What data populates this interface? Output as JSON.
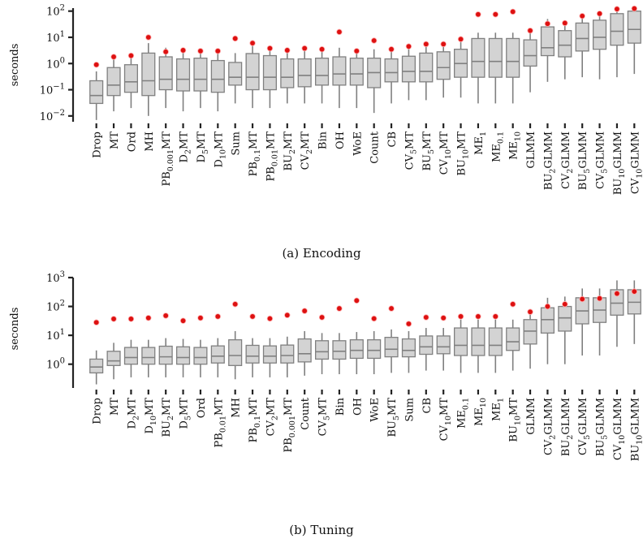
{
  "chart_data": [
    {
      "type": "box",
      "caption": "(a) Encoding",
      "ylabel": "seconds",
      "yscale": "log",
      "ylim": [
        0.006,
        130
      ],
      "yticks": [
        0.01,
        0.1,
        1,
        10,
        100
      ],
      "ytick_labels": [
        {
          "base": "10",
          "exp": "−2"
        },
        {
          "base": "10",
          "exp": "−1"
        },
        {
          "base": "10",
          "exp": "0"
        },
        {
          "base": "10",
          "exp": "1"
        },
        {
          "base": "10",
          "exp": "2"
        }
      ],
      "categories": [
        {
          "base": "Drop",
          "sub": ""
        },
        {
          "base": "MT",
          "sub": ""
        },
        {
          "base": "Ord",
          "sub": ""
        },
        {
          "base": "MH",
          "sub": ""
        },
        {
          "base": "PB",
          "sub": "0.001",
          "suffix": "MT"
        },
        {
          "base": "D",
          "sub": "2",
          "suffix": "MT"
        },
        {
          "base": "D",
          "sub": "5",
          "suffix": "MT"
        },
        {
          "base": "D",
          "sub": "10",
          "suffix": "MT"
        },
        {
          "base": "Sum",
          "sub": ""
        },
        {
          "base": "PB",
          "sub": "0.1",
          "suffix": "MT"
        },
        {
          "base": "PB",
          "sub": "0.01",
          "suffix": "MT"
        },
        {
          "base": "BU",
          "sub": "2",
          "suffix": "MT"
        },
        {
          "base": "CV",
          "sub": "2",
          "suffix": "MT"
        },
        {
          "base": "Bin",
          "sub": ""
        },
        {
          "base": "OH",
          "sub": ""
        },
        {
          "base": "WoE",
          "sub": ""
        },
        {
          "base": "Count",
          "sub": ""
        },
        {
          "base": "CB",
          "sub": ""
        },
        {
          "base": "CV",
          "sub": "5",
          "suffix": "MT"
        },
        {
          "base": "BU",
          "sub": "5",
          "suffix": "MT"
        },
        {
          "base": "CV",
          "sub": "10",
          "suffix": "MT"
        },
        {
          "base": "BU",
          "sub": "10",
          "suffix": "MT"
        },
        {
          "base": "ME",
          "sub": "1",
          "suffix": ""
        },
        {
          "base": "ME",
          "sub": "0.1",
          "suffix": ""
        },
        {
          "base": "ME",
          "sub": "10",
          "suffix": ""
        },
        {
          "base": "GLMM",
          "sub": ""
        },
        {
          "base": "BU",
          "sub": "2",
          "suffix": "GLMM"
        },
        {
          "base": "CV",
          "sub": "2",
          "suffix": "GLMM"
        },
        {
          "base": "BU",
          "sub": "5",
          "suffix": "GLMM"
        },
        {
          "base": "CV",
          "sub": "5",
          "suffix": "GLMM"
        },
        {
          "base": "BU",
          "sub": "10",
          "suffix": "GLMM"
        },
        {
          "base": "CV",
          "sub": "10",
          "suffix": "GLMM"
        }
      ],
      "boxes": [
        {
          "whislo": 0.007,
          "q1": 0.03,
          "med": 0.06,
          "q3": 0.22,
          "whishi": 0.5,
          "mean": 0.9
        },
        {
          "whislo": 0.015,
          "q1": 0.06,
          "med": 0.15,
          "q3": 0.7,
          "whishi": 1.5,
          "mean": 1.8
        },
        {
          "whislo": 0.02,
          "q1": 0.08,
          "med": 0.2,
          "q3": 0.9,
          "whishi": 1.8,
          "mean": 2.0
        },
        {
          "whislo": 0.01,
          "q1": 0.06,
          "med": 0.22,
          "q3": 2.5,
          "whishi": 6,
          "mean": 10
        },
        {
          "whislo": 0.02,
          "q1": 0.1,
          "med": 0.25,
          "q3": 1.8,
          "whishi": 4,
          "mean": 2.8
        },
        {
          "whislo": 0.015,
          "q1": 0.09,
          "med": 0.25,
          "q3": 1.5,
          "whishi": 3,
          "mean": 3.2
        },
        {
          "whislo": 0.02,
          "q1": 0.09,
          "med": 0.25,
          "q3": 1.6,
          "whishi": 3.2,
          "mean": 3.0
        },
        {
          "whislo": 0.015,
          "q1": 0.08,
          "med": 0.25,
          "q3": 1.3,
          "whishi": 3,
          "mean": 3.0
        },
        {
          "whislo": 0.03,
          "q1": 0.15,
          "med": 0.3,
          "q3": 1.1,
          "whishi": 2.5,
          "mean": 9
        },
        {
          "whislo": 0.02,
          "q1": 0.1,
          "med": 0.3,
          "q3": 2.4,
          "whishi": 5,
          "mean": 6
        },
        {
          "whislo": 0.02,
          "q1": 0.1,
          "med": 0.3,
          "q3": 2.0,
          "whishi": 4.5,
          "mean": 3.8
        },
        {
          "whislo": 0.03,
          "q1": 0.12,
          "med": 0.3,
          "q3": 1.5,
          "whishi": 3.5,
          "mean": 3.2
        },
        {
          "whislo": 0.03,
          "q1": 0.13,
          "med": 0.35,
          "q3": 1.5,
          "whishi": 3.5,
          "mean": 3.8
        },
        {
          "whislo": 0.03,
          "q1": 0.15,
          "med": 0.35,
          "q3": 1.6,
          "whishi": 3.5,
          "mean": 3.5
        },
        {
          "whislo": 0.02,
          "q1": 0.15,
          "med": 0.4,
          "q3": 1.8,
          "whishi": 4,
          "mean": 16
        },
        {
          "whislo": 0.02,
          "q1": 0.15,
          "med": 0.4,
          "q3": 1.6,
          "whishi": 3.5,
          "mean": 3.0
        },
        {
          "whislo": 0.013,
          "q1": 0.12,
          "med": 0.45,
          "q3": 1.6,
          "whishi": 3.5,
          "mean": 7.5
        },
        {
          "whislo": 0.03,
          "q1": 0.2,
          "med": 0.45,
          "q3": 1.5,
          "whishi": 4,
          "mean": 3.5
        },
        {
          "whislo": 0.04,
          "q1": 0.2,
          "med": 0.5,
          "q3": 1.9,
          "whishi": 4.5,
          "mean": 4.5
        },
        {
          "whislo": 0.04,
          "q1": 0.2,
          "med": 0.5,
          "q3": 2.5,
          "whishi": 5,
          "mean": 5.5
        },
        {
          "whislo": 0.05,
          "q1": 0.25,
          "med": 0.7,
          "q3": 2.8,
          "whishi": 5.5,
          "mean": 5.5
        },
        {
          "whislo": 0.05,
          "q1": 0.3,
          "med": 1.0,
          "q3": 3.5,
          "whishi": 7,
          "mean": 8.5
        },
        {
          "whislo": 0.03,
          "q1": 0.3,
          "med": 1.2,
          "q3": 9,
          "whishi": 15,
          "mean": 75
        },
        {
          "whislo": 0.03,
          "q1": 0.3,
          "med": 1.2,
          "q3": 9,
          "whishi": 15,
          "mean": 75
        },
        {
          "whislo": 0.03,
          "q1": 0.3,
          "med": 1.2,
          "q3": 9,
          "whishi": 15,
          "mean": 95
        },
        {
          "whislo": 0.08,
          "q1": 0.8,
          "med": 2.0,
          "q3": 8,
          "whishi": 15,
          "mean": 18
        },
        {
          "whislo": 0.2,
          "q1": 2,
          "med": 4,
          "q3": 25,
          "whishi": 50,
          "mean": 33
        },
        {
          "whislo": 0.25,
          "q1": 1.8,
          "med": 5,
          "q3": 18,
          "whishi": 35,
          "mean": 35
        },
        {
          "whislo": 0.3,
          "q1": 3,
          "med": 9,
          "q3": 35,
          "whishi": 60,
          "mean": 65
        },
        {
          "whislo": 0.25,
          "q1": 3.5,
          "med": 10,
          "q3": 45,
          "whishi": 80,
          "mean": 80
        },
        {
          "whislo": 0.3,
          "q1": 5,
          "med": 17,
          "q3": 80,
          "whishi": 120,
          "mean": 120
        },
        {
          "whislo": 0.4,
          "q1": 6,
          "med": 20,
          "q3": 100,
          "whishi": 130,
          "mean": 125
        }
      ]
    },
    {
      "type": "box",
      "caption": "(b) Tuning",
      "ylabel": "seconds",
      "yscale": "log",
      "ylim": [
        0.15,
        1000
      ],
      "yticks": [
        1,
        10,
        100,
        1000
      ],
      "ytick_labels": [
        {
          "base": "10",
          "exp": "0"
        },
        {
          "base": "10",
          "exp": "1"
        },
        {
          "base": "10",
          "exp": "2"
        },
        {
          "base": "10",
          "exp": "3"
        }
      ],
      "categories": [
        {
          "base": "Drop",
          "sub": ""
        },
        {
          "base": "MT",
          "sub": ""
        },
        {
          "base": "D",
          "sub": "2",
          "suffix": "MT"
        },
        {
          "base": "D",
          "sub": "10",
          "suffix": "MT"
        },
        {
          "base": "BU",
          "sub": "2",
          "suffix": "MT"
        },
        {
          "base": "D",
          "sub": "5",
          "suffix": "MT"
        },
        {
          "base": "Ord",
          "sub": ""
        },
        {
          "base": "PB",
          "sub": "0.01",
          "suffix": "MT"
        },
        {
          "base": "MH",
          "sub": ""
        },
        {
          "base": "PB",
          "sub": "0.1",
          "suffix": "MT"
        },
        {
          "base": "CV",
          "sub": "2",
          "suffix": "MT"
        },
        {
          "base": "PB",
          "sub": "0.001",
          "suffix": "MT"
        },
        {
          "base": "Count",
          "sub": ""
        },
        {
          "base": "CV",
          "sub": "5",
          "suffix": "MT"
        },
        {
          "base": "Bin",
          "sub": ""
        },
        {
          "base": "OH",
          "sub": ""
        },
        {
          "base": "WoE",
          "sub": ""
        },
        {
          "base": "BU",
          "sub": "5",
          "suffix": "MT"
        },
        {
          "base": "Sum",
          "sub": ""
        },
        {
          "base": "CB",
          "sub": ""
        },
        {
          "base": "CV",
          "sub": "10",
          "suffix": "MT"
        },
        {
          "base": "ME",
          "sub": "0.1",
          "suffix": ""
        },
        {
          "base": "ME",
          "sub": "10",
          "suffix": ""
        },
        {
          "base": "ME",
          "sub": "1",
          "suffix": ""
        },
        {
          "base": "BU",
          "sub": "10",
          "suffix": "MT"
        },
        {
          "base": "GLMM",
          "sub": ""
        },
        {
          "base": "CV",
          "sub": "2",
          "suffix": "GLMM"
        },
        {
          "base": "BU",
          "sub": "2",
          "suffix": "GLMM"
        },
        {
          "base": "CV",
          "sub": "5",
          "suffix": "GLMM"
        },
        {
          "base": "BU",
          "sub": "5",
          "suffix": "GLMM"
        },
        {
          "base": "CV",
          "sub": "10",
          "suffix": "GLMM"
        },
        {
          "base": "BU",
          "sub": "10",
          "suffix": "GLMM"
        }
      ],
      "boxes": [
        {
          "whislo": 0.2,
          "q1": 0.5,
          "med": 0.8,
          "q3": 1.5,
          "whishi": 3,
          "mean": 28
        },
        {
          "whislo": 0.3,
          "q1": 0.9,
          "med": 1.3,
          "q3": 2.8,
          "whishi": 5.5,
          "mean": 37
        },
        {
          "whislo": 0.35,
          "q1": 1.0,
          "med": 1.7,
          "q3": 3.8,
          "whishi": 7,
          "mean": 37
        },
        {
          "whislo": 0.35,
          "q1": 1.0,
          "med": 1.7,
          "q3": 3.8,
          "whishi": 7,
          "mean": 40
        },
        {
          "whislo": 0.35,
          "q1": 1.0,
          "med": 1.8,
          "q3": 4.2,
          "whishi": 8,
          "mean": 48
        },
        {
          "whislo": 0.35,
          "q1": 1.0,
          "med": 1.7,
          "q3": 4.0,
          "whishi": 7.5,
          "mean": 32
        },
        {
          "whislo": 0.35,
          "q1": 1.0,
          "med": 1.7,
          "q3": 3.8,
          "whishi": 7,
          "mean": 40
        },
        {
          "whislo": 0.35,
          "q1": 1.1,
          "med": 1.9,
          "q3": 4.3,
          "whishi": 8,
          "mean": 45
        },
        {
          "whislo": 0.3,
          "q1": 0.9,
          "med": 2.0,
          "q3": 7.0,
          "whishi": 14,
          "mean": 120
        },
        {
          "whislo": 0.35,
          "q1": 1.1,
          "med": 1.9,
          "q3": 4.5,
          "whishi": 8,
          "mean": 45
        },
        {
          "whislo": 0.35,
          "q1": 1.1,
          "med": 1.9,
          "q3": 4.3,
          "whishi": 8,
          "mean": 38
        },
        {
          "whislo": 0.35,
          "q1": 1.1,
          "med": 2.0,
          "q3": 4.6,
          "whishi": 9,
          "mean": 50
        },
        {
          "whislo": 0.4,
          "q1": 1.2,
          "med": 2.3,
          "q3": 7.5,
          "whishi": 14,
          "mean": 70
        },
        {
          "whislo": 0.45,
          "q1": 1.5,
          "med": 2.7,
          "q3": 6.5,
          "whishi": 12,
          "mean": 42
        },
        {
          "whislo": 0.45,
          "q1": 1.5,
          "med": 2.8,
          "q3": 6.5,
          "whishi": 12,
          "mean": 85
        },
        {
          "whislo": 0.45,
          "q1": 1.6,
          "med": 3.0,
          "q3": 7.0,
          "whishi": 13,
          "mean": 160
        },
        {
          "whislo": 0.45,
          "q1": 1.6,
          "med": 3.0,
          "q3": 7.0,
          "whishi": 14,
          "mean": 38
        },
        {
          "whislo": 0.5,
          "q1": 1.8,
          "med": 3.3,
          "q3": 8.5,
          "whishi": 16,
          "mean": 85
        },
        {
          "whislo": 0.5,
          "q1": 1.8,
          "med": 3.0,
          "q3": 7.5,
          "whishi": 14,
          "mean": 25
        },
        {
          "whislo": 0.6,
          "q1": 2.2,
          "med": 4.0,
          "q3": 9.5,
          "whishi": 18,
          "mean": 42
        },
        {
          "whislo": 0.6,
          "q1": 2.3,
          "med": 4.0,
          "q3": 9.5,
          "whishi": 18,
          "mean": 40
        },
        {
          "whislo": 0.5,
          "q1": 2.0,
          "med": 4.5,
          "q3": 18,
          "whishi": 35,
          "mean": 45
        },
        {
          "whislo": 0.5,
          "q1": 2.0,
          "med": 4.5,
          "q3": 18,
          "whishi": 35,
          "mean": 45
        },
        {
          "whislo": 0.5,
          "q1": 2.0,
          "med": 4.5,
          "q3": 18,
          "whishi": 35,
          "mean": 45
        },
        {
          "whislo": 0.6,
          "q1": 3.0,
          "med": 6.0,
          "q3": 18,
          "whishi": 35,
          "mean": 120
        },
        {
          "whislo": 0.7,
          "q1": 5.0,
          "med": 14,
          "q3": 35,
          "whishi": 60,
          "mean": 65
        },
        {
          "whislo": 1.0,
          "q1": 12,
          "med": 35,
          "q3": 90,
          "whishi": 200,
          "mean": 100
        },
        {
          "whislo": 1.0,
          "q1": 14,
          "med": 40,
          "q3": 100,
          "whishi": 220,
          "mean": 120
        },
        {
          "whislo": 2.0,
          "q1": 25,
          "med": 70,
          "q3": 200,
          "whishi": 420,
          "mean": 180
        },
        {
          "whislo": 2.0,
          "q1": 28,
          "med": 75,
          "q3": 200,
          "whishi": 420,
          "mean": 190
        },
        {
          "whislo": 4.0,
          "q1": 50,
          "med": 130,
          "q3": 380,
          "whishi": 800,
          "mean": 280
        },
        {
          "whislo": 5.0,
          "q1": 55,
          "med": 140,
          "q3": 380,
          "whishi": 800,
          "mean": 330
        }
      ]
    }
  ]
}
